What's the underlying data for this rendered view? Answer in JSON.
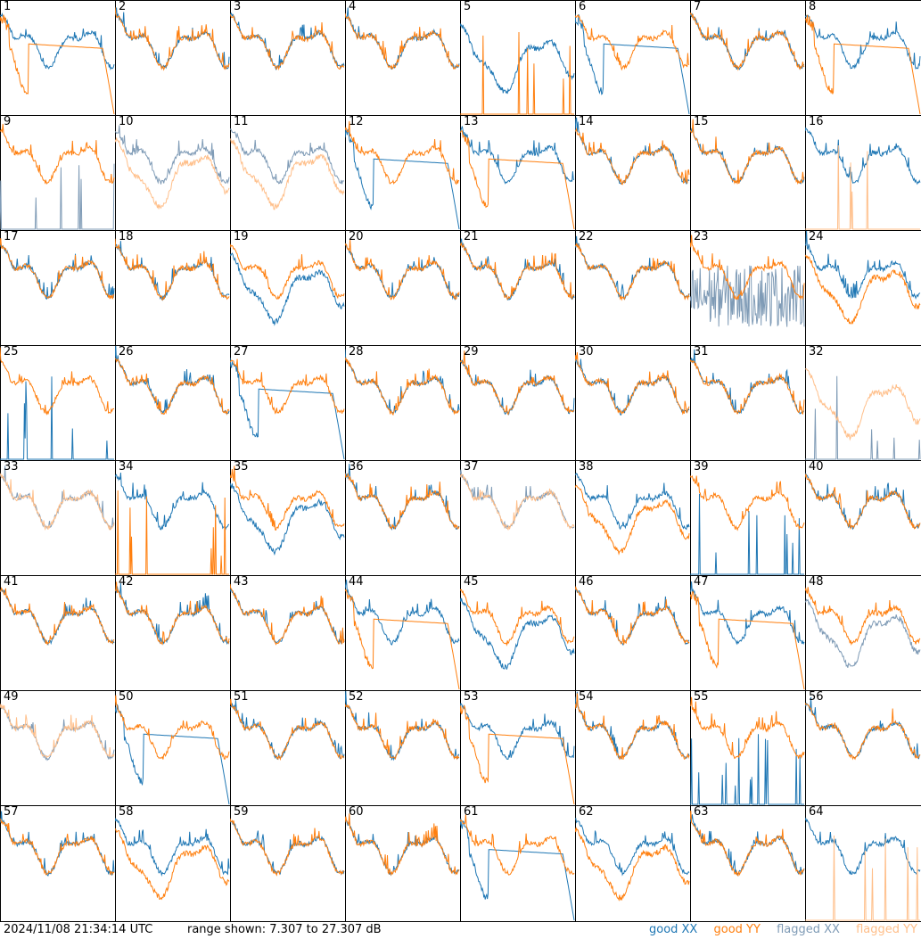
{
  "footer": {
    "timestamp": "2024/11/08 21:34:14 UTC",
    "range_text": "range shown: 7.307 to 27.307 dB"
  },
  "legend": [
    {
      "label": "good XX",
      "color": "#1f77b4"
    },
    {
      "label": "good YY",
      "color": "#ff7f0e"
    },
    {
      "label": "flagged XX",
      "color": "#7f9bb6"
    },
    {
      "label": "flagged YY",
      "color": "#ffbf8a"
    }
  ],
  "chart_data": {
    "type": "line",
    "layout": "8x8 small multiples",
    "y_range_db": [
      7.307,
      27.307
    ],
    "panels": [
      {
        "label": "1",
        "xx": "good",
        "yy": "good",
        "xx_shape": "normal",
        "yy_shape": "flat_dropout"
      },
      {
        "label": "2",
        "xx": "good",
        "yy": "good",
        "xx_shape": "normal",
        "yy_shape": "normal"
      },
      {
        "label": "3",
        "xx": "good",
        "yy": "good",
        "xx_shape": "normal",
        "yy_shape": "normal"
      },
      {
        "label": "4",
        "xx": "good",
        "yy": "good",
        "xx_shape": "normal",
        "yy_shape": "normal"
      },
      {
        "label": "5",
        "xx": "good",
        "yy": "good",
        "xx_shape": "low_dip",
        "yy_shape": "spikes"
      },
      {
        "label": "6",
        "xx": "good",
        "yy": "good",
        "xx_shape": "flat_dropout",
        "yy_shape": "normal"
      },
      {
        "label": "7",
        "xx": "good",
        "yy": "good",
        "xx_shape": "normal",
        "yy_shape": "normal"
      },
      {
        "label": "8",
        "xx": "good",
        "yy": "good",
        "xx_shape": "normal",
        "yy_shape": "flat_dropout"
      },
      {
        "label": "9",
        "xx": "flagged",
        "yy": "good",
        "xx_shape": "spikes",
        "yy_shape": "normal"
      },
      {
        "label": "10",
        "xx": "flagged",
        "yy": "flagged",
        "xx_shape": "normal",
        "yy_shape": "low_dip"
      },
      {
        "label": "11",
        "xx": "flagged",
        "yy": "flagged",
        "xx_shape": "normal",
        "yy_shape": "low_dip"
      },
      {
        "label": "12",
        "xx": "good",
        "yy": "good",
        "xx_shape": "flat_dropout",
        "yy_shape": "normal"
      },
      {
        "label": "13",
        "xx": "good",
        "yy": "good",
        "xx_shape": "normal",
        "yy_shape": "flat_dropout"
      },
      {
        "label": "14",
        "xx": "good",
        "yy": "good",
        "xx_shape": "normal",
        "yy_shape": "normal"
      },
      {
        "label": "15",
        "xx": "good",
        "yy": "good",
        "xx_shape": "normal",
        "yy_shape": "normal"
      },
      {
        "label": "16",
        "xx": "good",
        "yy": "flagged",
        "xx_shape": "normal",
        "yy_shape": "spikes"
      },
      {
        "label": "17",
        "xx": "good",
        "yy": "good",
        "xx_shape": "normal",
        "yy_shape": "normal"
      },
      {
        "label": "18",
        "xx": "good",
        "yy": "good",
        "xx_shape": "normal",
        "yy_shape": "normal"
      },
      {
        "label": "19",
        "xx": "good",
        "yy": "good",
        "xx_shape": "low_dip",
        "yy_shape": "normal"
      },
      {
        "label": "20",
        "xx": "good",
        "yy": "good",
        "xx_shape": "normal",
        "yy_shape": "normal"
      },
      {
        "label": "21",
        "xx": "good",
        "yy": "good",
        "xx_shape": "normal",
        "yy_shape": "normal"
      },
      {
        "label": "22",
        "xx": "good",
        "yy": "good",
        "xx_shape": "normal",
        "yy_shape": "normal"
      },
      {
        "label": "23",
        "xx": "flagged",
        "yy": "good",
        "xx_shape": "noisy_low",
        "yy_shape": "normal"
      },
      {
        "label": "24",
        "xx": "good",
        "yy": "good",
        "xx_shape": "normal",
        "yy_shape": "low_dip"
      },
      {
        "label": "25",
        "xx": "good",
        "yy": "good",
        "xx_shape": "spikes",
        "yy_shape": "normal"
      },
      {
        "label": "26",
        "xx": "good",
        "yy": "good",
        "xx_shape": "normal",
        "yy_shape": "normal"
      },
      {
        "label": "27",
        "xx": "good",
        "yy": "good",
        "xx_shape": "flat_dropout",
        "yy_shape": "normal"
      },
      {
        "label": "28",
        "xx": "good",
        "yy": "good",
        "xx_shape": "normal",
        "yy_shape": "normal"
      },
      {
        "label": "29",
        "xx": "good",
        "yy": "good",
        "xx_shape": "normal",
        "yy_shape": "normal"
      },
      {
        "label": "30",
        "xx": "good",
        "yy": "good",
        "xx_shape": "normal",
        "yy_shape": "normal"
      },
      {
        "label": "31",
        "xx": "good",
        "yy": "good",
        "xx_shape": "normal",
        "yy_shape": "normal"
      },
      {
        "label": "32",
        "xx": "flagged",
        "yy": "flagged",
        "xx_shape": "spikes",
        "yy_shape": "low_dip"
      },
      {
        "label": "33",
        "xx": "flagged",
        "yy": "flagged",
        "xx_shape": "normal",
        "yy_shape": "normal"
      },
      {
        "label": "34",
        "xx": "good",
        "yy": "good",
        "xx_shape": "normal",
        "yy_shape": "spikes"
      },
      {
        "label": "35",
        "xx": "good",
        "yy": "good",
        "xx_shape": "low_dip",
        "yy_shape": "normal"
      },
      {
        "label": "36",
        "xx": "good",
        "yy": "good",
        "xx_shape": "normal",
        "yy_shape": "normal"
      },
      {
        "label": "37",
        "xx": "flagged",
        "yy": "flagged",
        "xx_shape": "normal",
        "yy_shape": "normal"
      },
      {
        "label": "38",
        "xx": "good",
        "yy": "good",
        "xx_shape": "normal",
        "yy_shape": "low_dip"
      },
      {
        "label": "39",
        "xx": "good",
        "yy": "good",
        "xx_shape": "spikes",
        "yy_shape": "normal"
      },
      {
        "label": "40",
        "xx": "good",
        "yy": "good",
        "xx_shape": "normal",
        "yy_shape": "normal"
      },
      {
        "label": "41",
        "xx": "good",
        "yy": "good",
        "xx_shape": "normal",
        "yy_shape": "normal"
      },
      {
        "label": "42",
        "xx": "good",
        "yy": "good",
        "xx_shape": "normal",
        "yy_shape": "normal"
      },
      {
        "label": "43",
        "xx": "good",
        "yy": "good",
        "xx_shape": "normal",
        "yy_shape": "normal"
      },
      {
        "label": "44",
        "xx": "good",
        "yy": "good",
        "xx_shape": "normal",
        "yy_shape": "flat_dropout"
      },
      {
        "label": "45",
        "xx": "good",
        "yy": "good",
        "xx_shape": "low_dip",
        "yy_shape": "normal"
      },
      {
        "label": "46",
        "xx": "good",
        "yy": "good",
        "xx_shape": "normal",
        "yy_shape": "normal"
      },
      {
        "label": "47",
        "xx": "good",
        "yy": "good",
        "xx_shape": "normal",
        "yy_shape": "flat_dropout"
      },
      {
        "label": "48",
        "xx": "flagged",
        "yy": "good",
        "xx_shape": "low_dip",
        "yy_shape": "normal"
      },
      {
        "label": "49",
        "xx": "flagged",
        "yy": "flagged",
        "xx_shape": "normal",
        "yy_shape": "normal"
      },
      {
        "label": "50",
        "xx": "good",
        "yy": "good",
        "xx_shape": "flat_dropout",
        "yy_shape": "normal"
      },
      {
        "label": "51",
        "xx": "good",
        "yy": "good",
        "xx_shape": "normal",
        "yy_shape": "normal"
      },
      {
        "label": "52",
        "xx": "good",
        "yy": "good",
        "xx_shape": "normal",
        "yy_shape": "normal"
      },
      {
        "label": "53",
        "xx": "good",
        "yy": "good",
        "xx_shape": "normal",
        "yy_shape": "flat_dropout"
      },
      {
        "label": "54",
        "xx": "good",
        "yy": "good",
        "xx_shape": "normal",
        "yy_shape": "normal"
      },
      {
        "label": "55",
        "xx": "good",
        "yy": "good",
        "xx_shape": "spikes",
        "yy_shape": "normal"
      },
      {
        "label": "56",
        "xx": "good",
        "yy": "good",
        "xx_shape": "normal",
        "yy_shape": "normal"
      },
      {
        "label": "57",
        "xx": "good",
        "yy": "good",
        "xx_shape": "normal",
        "yy_shape": "normal"
      },
      {
        "label": "58",
        "xx": "good",
        "yy": "good",
        "xx_shape": "normal",
        "yy_shape": "low_dip"
      },
      {
        "label": "59",
        "xx": "good",
        "yy": "good",
        "xx_shape": "normal",
        "yy_shape": "normal"
      },
      {
        "label": "60",
        "xx": "good",
        "yy": "good",
        "xx_shape": "normal",
        "yy_shape": "normal"
      },
      {
        "label": "61",
        "xx": "good",
        "yy": "good",
        "xx_shape": "flat_dropout",
        "yy_shape": "normal"
      },
      {
        "label": "62",
        "xx": "good",
        "yy": "good",
        "xx_shape": "normal",
        "yy_shape": "low_dip"
      },
      {
        "label": "63",
        "xx": "good",
        "yy": "good",
        "xx_shape": "normal",
        "yy_shape": "normal"
      },
      {
        "label": "64",
        "xx": "good",
        "yy": "flagged",
        "xx_shape": "normal",
        "yy_shape": "spikes"
      }
    ]
  }
}
